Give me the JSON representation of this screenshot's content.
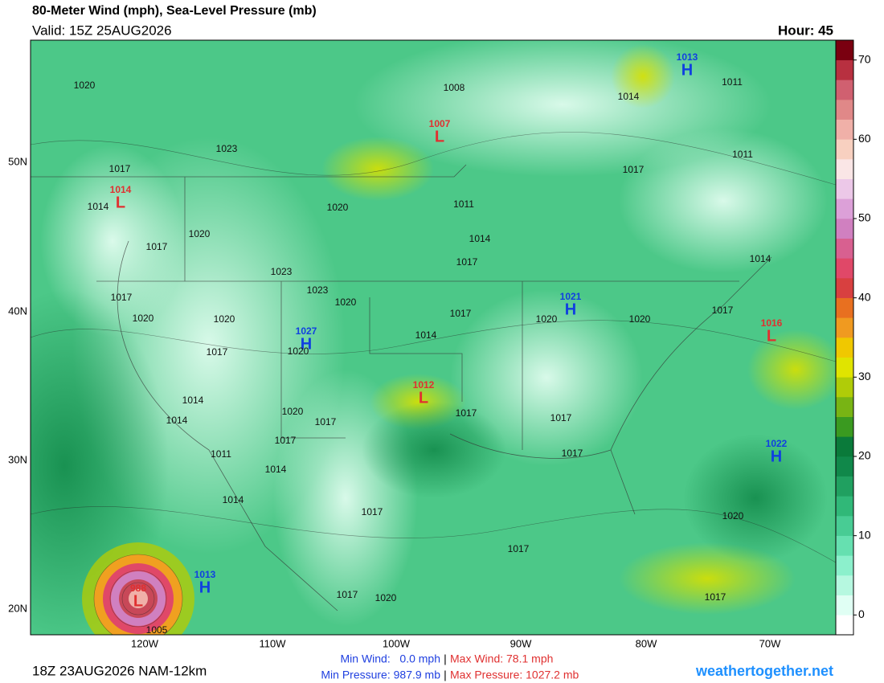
{
  "header": {
    "title": "80-Meter Wind (mph), Sea-Level Pressure (mb)",
    "valid": "Valid: 15Z 25AUG2026",
    "hour": "Hour: 45"
  },
  "map": {
    "lat_labels": [
      "50N",
      "40N",
      "30N",
      "20N"
    ],
    "lon_labels": [
      "120W",
      "110W",
      "100W",
      "90W",
      "80W",
      "70W"
    ],
    "centers": [
      {
        "letter": "H",
        "pressure": "1013"
      },
      {
        "letter": "L",
        "pressure": "1007"
      },
      {
        "letter": "L",
        "pressure": "1014"
      },
      {
        "letter": "H",
        "pressure": "1021"
      },
      {
        "letter": "H",
        "pressure": "1027"
      },
      {
        "letter": "L",
        "pressure": "1016"
      },
      {
        "letter": "L",
        "pressure": "1012"
      },
      {
        "letter": "H",
        "pressure": "1022"
      },
      {
        "letter": "H",
        "pressure": "1013"
      },
      {
        "letter": "L",
        "pressure": "988"
      }
    ],
    "isobar_labels": [
      "1020",
      "1008",
      "1011",
      "1014",
      "1023",
      "1017",
      "1011",
      "1017",
      "1014",
      "1020",
      "1011",
      "1020",
      "1014",
      "1017",
      "1017",
      "1014",
      "1023",
      "1023",
      "1020",
      "1017",
      "1020",
      "1020",
      "1017",
      "1020",
      "1020",
      "1017",
      "1014",
      "1020",
      "1017",
      "1014",
      "1014",
      "1020",
      "1017",
      "1017",
      "1017",
      "1017",
      "1017",
      "1011",
      "1014",
      "1014",
      "1017",
      "1020",
      "1017",
      "1017",
      "1020",
      "1017",
      "1005"
    ]
  },
  "colorbar": {
    "ticks": [
      0,
      10,
      20,
      30,
      40,
      50,
      60,
      70
    ],
    "colors": [
      "#ffffff",
      "#e0fff4",
      "#b6f8e0",
      "#8cf0cc",
      "#66e0b0",
      "#48cc94",
      "#30b878",
      "#20a060",
      "#10884a",
      "#0a7a3a",
      "#3a9a20",
      "#78b414",
      "#b0cc08",
      "#e0e400",
      "#f0c800",
      "#f09a20",
      "#e87020",
      "#d84040",
      "#e04868",
      "#d86090",
      "#d080c0",
      "#dca0d8",
      "#ecc8e8",
      "#fae6e6",
      "#f8d0c0",
      "#f0b0a8",
      "#e08888",
      "#d06070",
      "#b83040",
      "#7a0010"
    ]
  },
  "footer": {
    "run": "18Z 23AUG2026 NAM-12km",
    "min_wind": "Min Wind:   0.0 mph",
    "max_wind": "Max Wind: 78.1 mph",
    "separator": "|",
    "min_pressure": "Min Pressure: 987.9 mb",
    "max_pressure": "Max Pressure: 1027.2 mb",
    "site": "weathertogether.net"
  }
}
